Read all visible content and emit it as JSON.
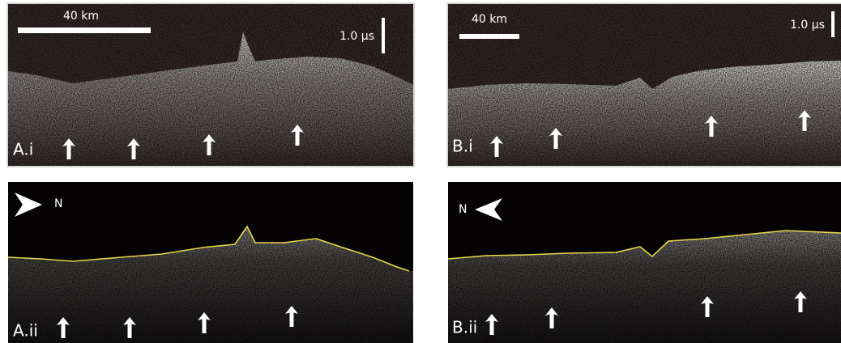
{
  "panels": [
    {
      "label": "A.i",
      "scale_distance": "40 km",
      "scale_time": "1.0 µs"
    },
    {
      "label": "A.ii",
      "north": "N"
    },
    {
      "label": "B.i",
      "scale_distance": "40 km",
      "scale_time": "1.0 µs"
    },
    {
      "label": "B.ii",
      "north": "N"
    }
  ]
}
